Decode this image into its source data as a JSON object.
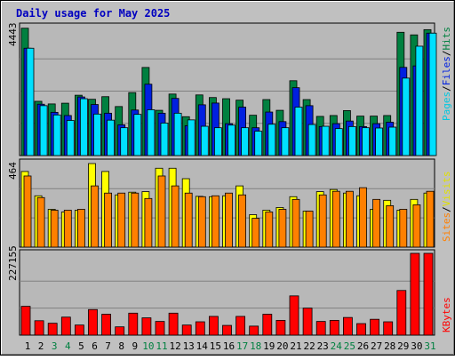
{
  "chart_data": [
    {
      "type": "bar",
      "title": "Daily usage for May 2025",
      "panel": "requests",
      "categories": [
        "1",
        "2",
        "3",
        "4",
        "5",
        "6",
        "7",
        "8",
        "9",
        "10",
        "11",
        "12",
        "13",
        "14",
        "15",
        "16",
        "17",
        "18",
        "19",
        "20",
        "21",
        "22",
        "23",
        "24",
        "25",
        "26",
        "27",
        "28",
        "29",
        "30",
        "31"
      ],
      "weekend_days": [
        "3",
        "4",
        "10",
        "11",
        "17",
        "18",
        "24",
        "25",
        "31"
      ],
      "ymax_label": "4443",
      "ylim": [
        0,
        4443
      ],
      "series": [
        {
          "name": "Hits",
          "color": "#008040",
          "values": [
            4390,
            1870,
            1780,
            1805,
            2080,
            1940,
            2030,
            1690,
            2170,
            3037,
            1560,
            2120,
            1340,
            2090,
            2000,
            1960,
            1910,
            1390,
            1930,
            1560,
            2580,
            1930,
            1350,
            1380,
            1550,
            1360,
            1360,
            1380,
            4250,
            4160,
            4340
          ]
        },
        {
          "name": "Files",
          "color": "#0020e0",
          "values": [
            3700,
            1770,
            1490,
            1380,
            2020,
            1760,
            1460,
            1060,
            1570,
            2460,
            1460,
            1970,
            1030,
            1750,
            1810,
            1100,
            1670,
            960,
            1500,
            1170,
            2340,
            1720,
            1000,
            1100,
            1190,
            1000,
            1100,
            1150,
            3040,
            3090,
            4220
          ]
        },
        {
          "name": "Pages",
          "color": "#00e0ff",
          "values": [
            3700,
            1720,
            1400,
            1210,
            1960,
            1430,
            1220,
            960,
            1420,
            1580,
            1120,
            1460,
            1230,
            1010,
            960,
            1050,
            960,
            840,
            1080,
            960,
            1670,
            1070,
            1010,
            930,
            1000,
            960,
            950,
            980,
            2670,
            3770,
            4220
          ]
        }
      ]
    },
    {
      "type": "bar",
      "panel": "visitors",
      "ymax_label": "464",
      "ylim": [
        0,
        464
      ],
      "series": [
        {
          "name": "Visits",
          "color": "#ffff00",
          "values": [
            420,
            285,
            210,
            195,
            205,
            464,
            420,
            290,
            305,
            308,
            438,
            438,
            380,
            282,
            280,
            285,
            340,
            180,
            205,
            220,
            280,
            200,
            308,
            320,
            300,
            285,
            210,
            260,
            205,
            265,
            300
          ]
        },
        {
          "name": "Sites",
          "color": "#ff8000",
          "values": [
            395,
            275,
            205,
            205,
            210,
            340,
            300,
            300,
            300,
            270,
            395,
            340,
            300,
            280,
            285,
            300,
            290,
            160,
            195,
            210,
            265,
            200,
            290,
            310,
            310,
            330,
            265,
            230,
            210,
            235,
            310
          ]
        }
      ]
    },
    {
      "type": "bar",
      "panel": "kbytes",
      "ymax_label": "227155",
      "ylim": [
        0,
        227155
      ],
      "series": [
        {
          "name": "KBytes",
          "color": "#ff0000",
          "values": [
            80000,
            40000,
            33000,
            50000,
            28000,
            71000,
            58000,
            23000,
            61000,
            48000,
            38000,
            61000,
            28000,
            37000,
            52000,
            27000,
            52000,
            25000,
            58000,
            41000,
            109000,
            75000,
            38000,
            41000,
            49000,
            32000,
            44000,
            37000,
            124000,
            227155,
            227155
          ]
        }
      ]
    }
  ]
}
